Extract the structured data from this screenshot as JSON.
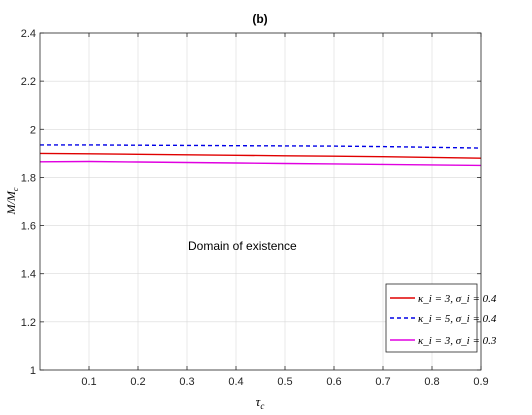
{
  "chart_data": {
    "type": "line",
    "title": "(b)",
    "xlabel": "τ_c",
    "ylabel": "M/M_c",
    "xlim": [
      0,
      0.9
    ],
    "ylim": [
      1,
      2.4
    ],
    "xticks": [
      "0.1",
      "0.2",
      "0.3",
      "0.4",
      "0.5",
      "0.6",
      "0.7",
      "0.8",
      "0.9"
    ],
    "yticks": [
      "1",
      "1.2",
      "1.4",
      "1.6",
      "1.8",
      "2",
      "2.2",
      "2.4"
    ],
    "grid": true,
    "legend_position": "bottom-right",
    "annotation": "Domain of existence",
    "series": [
      {
        "name": "κ_i = 3, σ_i = 0.4",
        "color": "#e00000",
        "dash": "solid",
        "x": [
          0.0,
          0.1,
          0.2,
          0.3,
          0.4,
          0.5,
          0.6,
          0.7,
          0.8,
          0.9
        ],
        "values": [
          1.9,
          1.898,
          1.896,
          1.894,
          1.892,
          1.89,
          1.888,
          1.886,
          1.883,
          1.88
        ]
      },
      {
        "name": "κ_i = 5, σ_i = 0.4",
        "color": "#0000e6",
        "dash": "dashed",
        "x": [
          0.0,
          0.1,
          0.2,
          0.3,
          0.4,
          0.5,
          0.6,
          0.7,
          0.8,
          0.9
        ],
        "values": [
          1.935,
          1.935,
          1.934,
          1.933,
          1.932,
          1.931,
          1.93,
          1.928,
          1.925,
          1.922
        ]
      },
      {
        "name": "κ_i = 3, σ_i = 0.3",
        "color": "#e000e0",
        "dash": "solid",
        "x": [
          0.0,
          0.1,
          0.2,
          0.3,
          0.4,
          0.5,
          0.6,
          0.7,
          0.8,
          0.9
        ],
        "values": [
          1.865,
          1.866,
          1.864,
          1.862,
          1.86,
          1.858,
          1.856,
          1.854,
          1.852,
          1.85
        ]
      }
    ]
  }
}
